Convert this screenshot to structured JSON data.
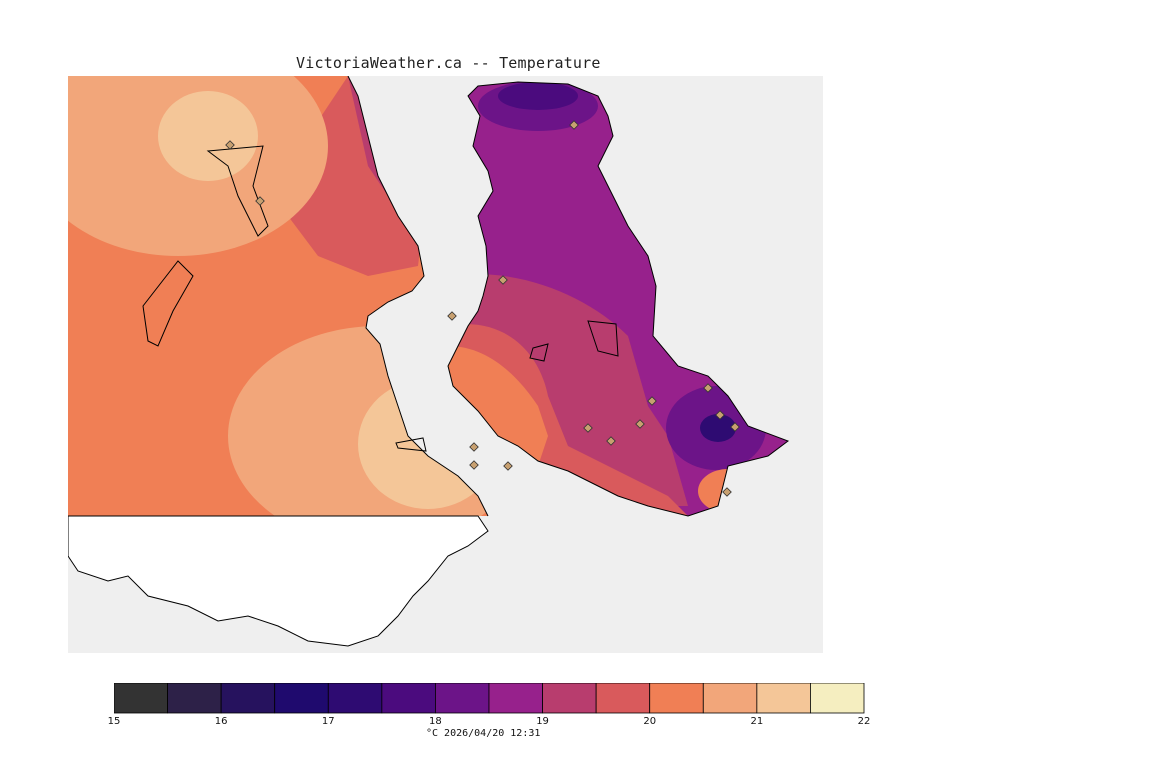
{
  "title": "VictoriaWeather.ca -- Temperature",
  "units_label": "°C  2026/04/20 12:31",
  "legend": {
    "ticks": [
      "15",
      "16",
      "17",
      "18",
      "19",
      "20",
      "21",
      "22"
    ],
    "bins": [
      {
        "color": "#333333"
      },
      {
        "color": "#2d2148"
      },
      {
        "color": "#26125e"
      },
      {
        "color": "#1f0a6e"
      },
      {
        "color": "#2e0b72"
      },
      {
        "color": "#4b0b7e"
      },
      {
        "color": "#6c1488"
      },
      {
        "color": "#97218c"
      },
      {
        "color": "#b83d6e"
      },
      {
        "color": "#d95a5c"
      },
      {
        "color": "#f07f55"
      },
      {
        "color": "#f2a67a"
      },
      {
        "color": "#f4c698"
      },
      {
        "color": "#f5eec0"
      }
    ]
  },
  "colors": {
    "water": "#efefef",
    "land_outside": "#ffffff",
    "coast": "#000000",
    "station_marker": "#c8a070"
  }
}
